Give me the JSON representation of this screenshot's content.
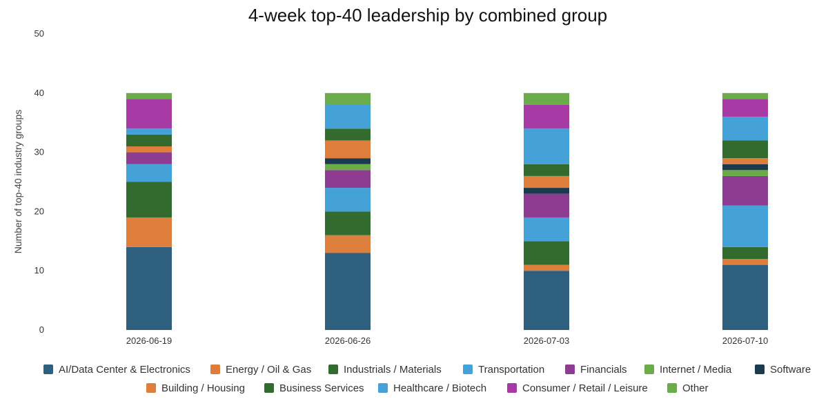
{
  "chart_data": {
    "type": "bar",
    "stacked": true,
    "title": "4-week top-40 leadership by combined group",
    "xlabel": "",
    "ylabel": "Number of top-40 industry groups",
    "ylim": [
      0,
      50
    ],
    "yticks": [
      0,
      10,
      20,
      30,
      40,
      50
    ],
    "grid": false,
    "legend_position": "bottom",
    "categories": [
      "2026-06-19",
      "2026-06-26",
      "2026-07-03",
      "2026-07-10"
    ],
    "series": [
      {
        "name": "AI/Data Center & Electronics",
        "color": "#2e5f7f",
        "values": [
          14,
          13,
          10,
          11
        ]
      },
      {
        "name": "Energy / Oil & Gas",
        "color": "#de7e3c",
        "values": [
          5,
          3,
          1,
          1
        ]
      },
      {
        "name": "Industrials / Materials",
        "color": "#336b2e",
        "values": [
          6,
          4,
          4,
          2
        ]
      },
      {
        "name": "Transportation",
        "color": "#45a2d8",
        "values": [
          3,
          4,
          4,
          7
        ]
      },
      {
        "name": "Financials",
        "color": "#8e3b92",
        "values": [
          2,
          3,
          4,
          5
        ]
      },
      {
        "name": "Internet / Media",
        "color": "#6aab4a",
        "values": [
          0,
          1,
          0,
          1
        ]
      },
      {
        "name": "Software",
        "color": "#1c3a4f",
        "values": [
          0,
          1,
          1,
          1
        ]
      },
      {
        "name": "Building / Housing",
        "color": "#de7e3c",
        "values": [
          1,
          3,
          2,
          1
        ]
      },
      {
        "name": "Business Services",
        "color": "#336b2e",
        "values": [
          2,
          2,
          2,
          3
        ]
      },
      {
        "name": "Healthcare / Biotech",
        "color": "#45a2d8",
        "values": [
          1,
          4,
          6,
          4
        ]
      },
      {
        "name": "Consumer / Retail / Leisure",
        "color": "#a83aa6",
        "values": [
          5,
          0,
          4,
          3
        ]
      },
      {
        "name": "Other",
        "color": "#6aab4a",
        "values": [
          1,
          2,
          2,
          1
        ]
      }
    ]
  }
}
